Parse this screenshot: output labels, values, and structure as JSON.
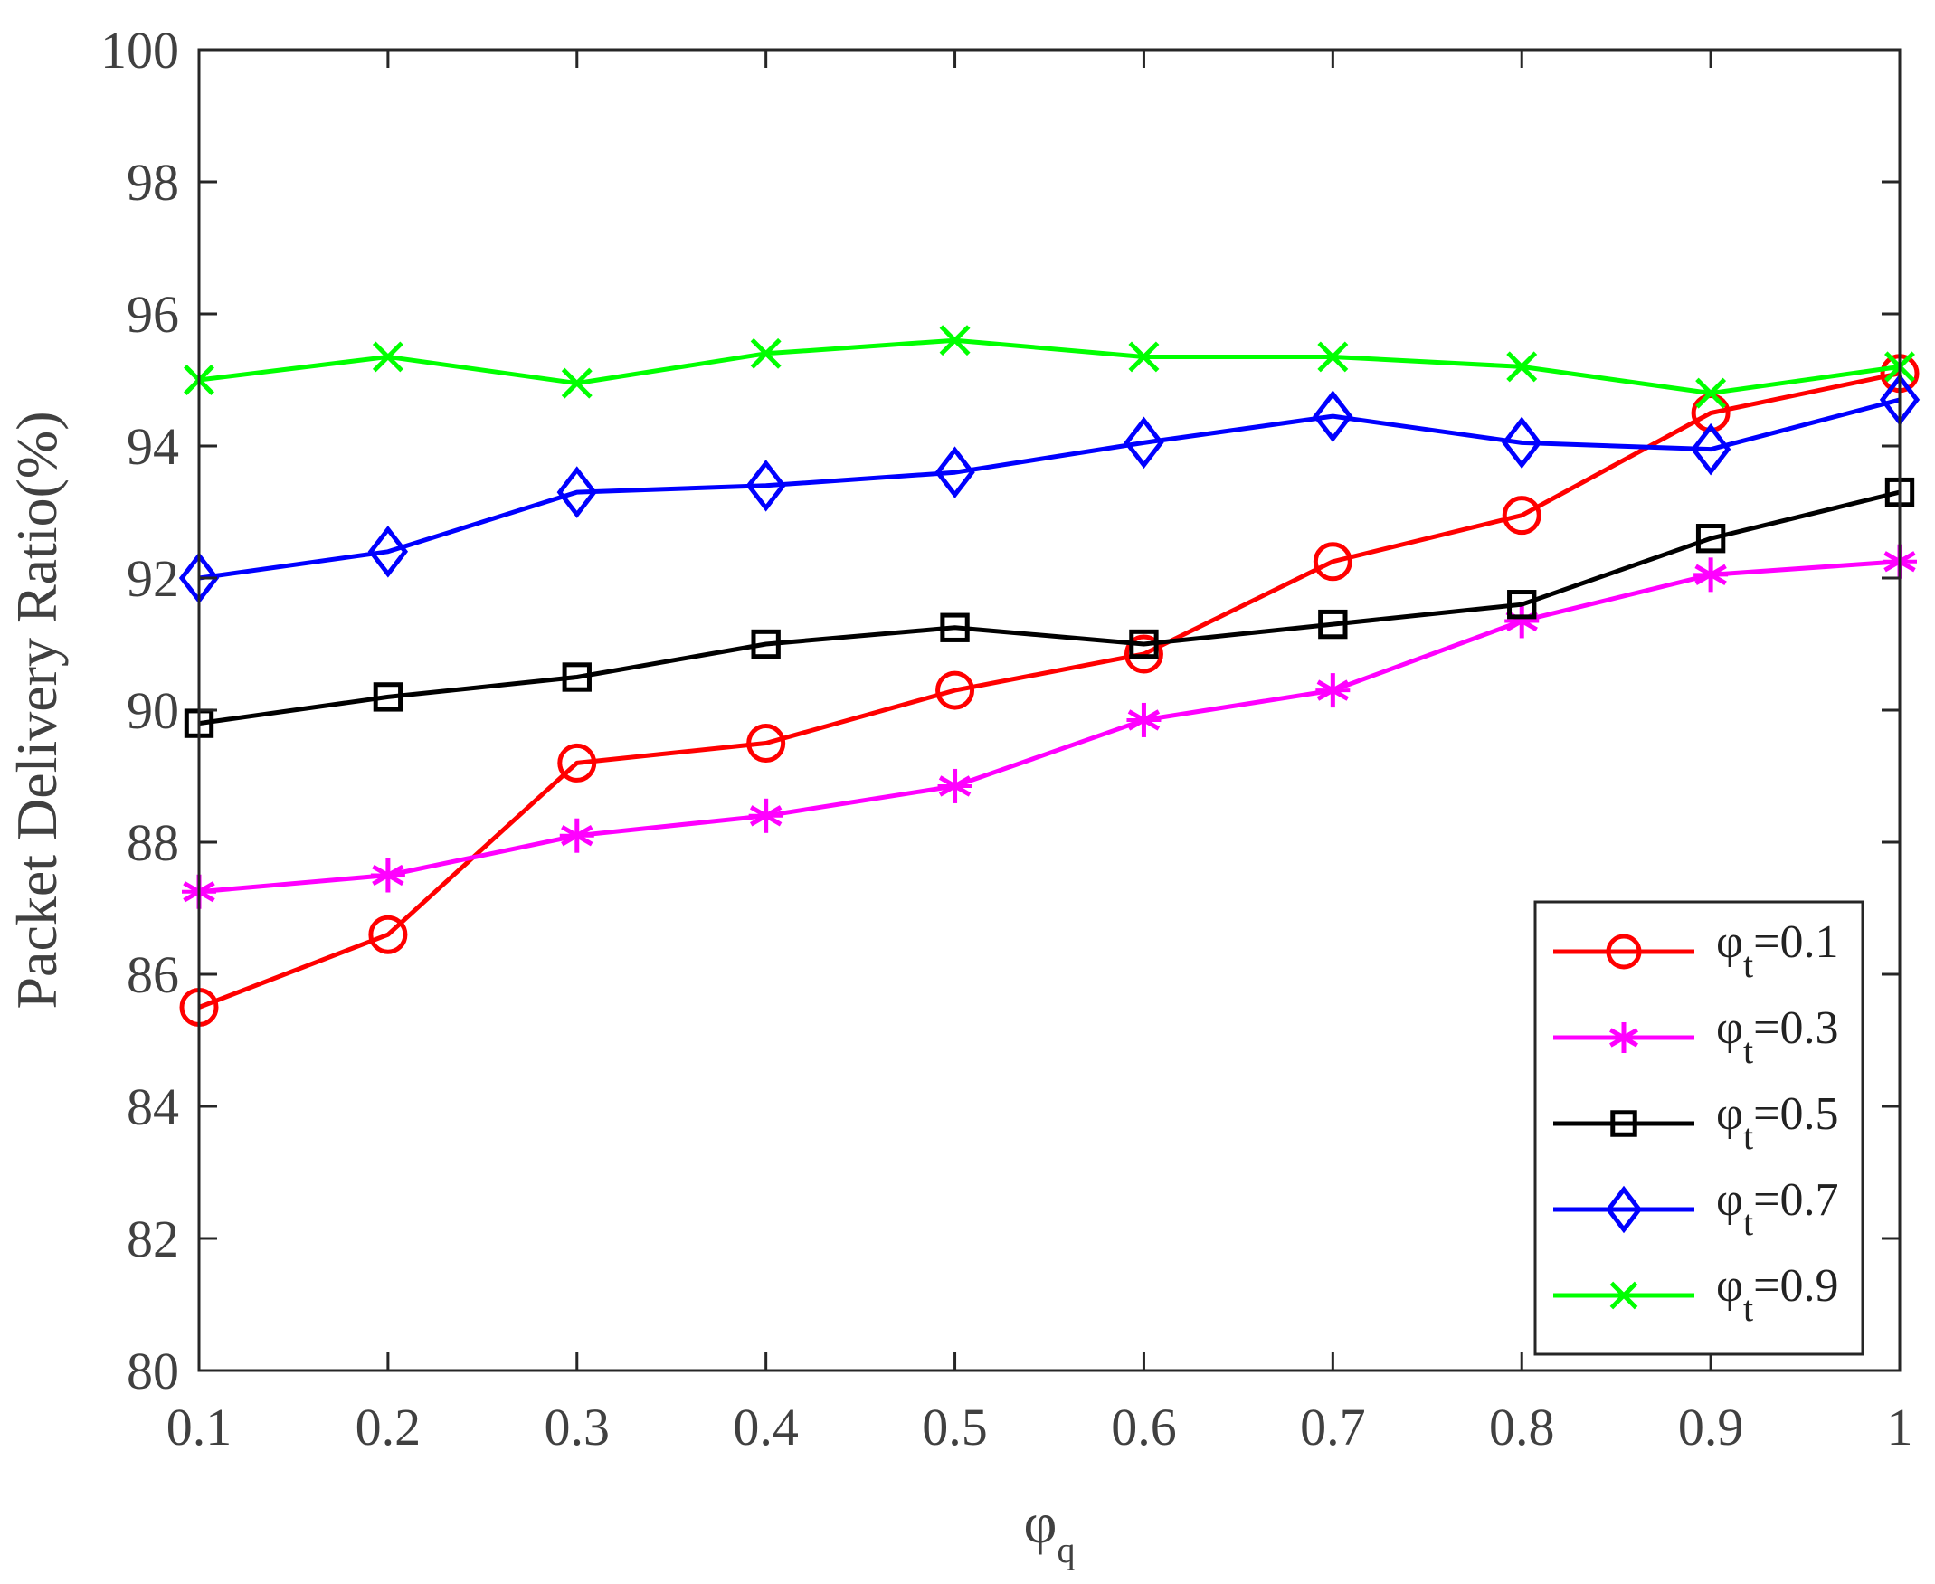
{
  "chart_data": {
    "type": "line",
    "xlabel": "φ",
    "xlabel_sub": "q",
    "ylabel": "Packet Delivery Ratio(%)",
    "x": [
      0.1,
      0.2,
      0.3,
      0.4,
      0.5,
      0.6,
      0.7,
      0.8,
      0.9,
      1.0
    ],
    "xlim": [
      0.1,
      1.0
    ],
    "ylim": [
      80,
      100
    ],
    "xticks": [
      0.1,
      0.2,
      0.3,
      0.4,
      0.5,
      0.6,
      0.7,
      0.8,
      0.9,
      1.0
    ],
    "xtick_labels": [
      "0.1",
      "0.2",
      "0.3",
      "0.4",
      "0.5",
      "0.6",
      "0.7",
      "0.8",
      "0.9",
      "1"
    ],
    "yticks": [
      80,
      82,
      84,
      86,
      88,
      90,
      92,
      94,
      96,
      98,
      100
    ],
    "ytick_labels": [
      "80",
      "82",
      "84",
      "86",
      "88",
      "90",
      "92",
      "94",
      "96",
      "98",
      "100"
    ],
    "grid": false,
    "legend_position": "bottom-right",
    "series": [
      {
        "name": "φt=0.1",
        "name_base": "φ",
        "name_sub": "t",
        "name_rest": "=0.1",
        "color": "#ff0000",
        "marker": "circle",
        "values": [
          85.5,
          86.6,
          89.2,
          89.5,
          90.3,
          90.85,
          92.25,
          92.95,
          94.5,
          95.1
        ]
      },
      {
        "name": "φt=0.3",
        "name_base": "φ",
        "name_sub": "t",
        "name_rest": "=0.3",
        "color": "#ff00ff",
        "marker": "asterisk",
        "values": [
          87.25,
          87.5,
          88.1,
          88.4,
          88.85,
          89.85,
          90.3,
          91.35,
          92.05,
          92.25
        ]
      },
      {
        "name": "φt=0.5",
        "name_base": "φ",
        "name_sub": "t",
        "name_rest": "=0.5",
        "color": "#000000",
        "marker": "square",
        "values": [
          89.8,
          90.2,
          90.5,
          91.0,
          91.25,
          91.0,
          91.3,
          91.6,
          92.6,
          93.3
        ]
      },
      {
        "name": "φt=0.7",
        "name_base": "φ",
        "name_sub": "t",
        "name_rest": "=0.7",
        "color": "#0000ff",
        "marker": "diamond",
        "values": [
          92.0,
          92.4,
          93.3,
          93.4,
          93.6,
          94.05,
          94.45,
          94.05,
          93.95,
          94.7
        ]
      },
      {
        "name": "φt=0.9",
        "name_base": "φ",
        "name_sub": "t",
        "name_rest": "=0.9",
        "color": "#00ff00",
        "marker": "x",
        "values": [
          95.0,
          95.35,
          94.95,
          95.4,
          95.6,
          95.35,
          95.35,
          95.2,
          94.8,
          95.2
        ]
      }
    ]
  }
}
